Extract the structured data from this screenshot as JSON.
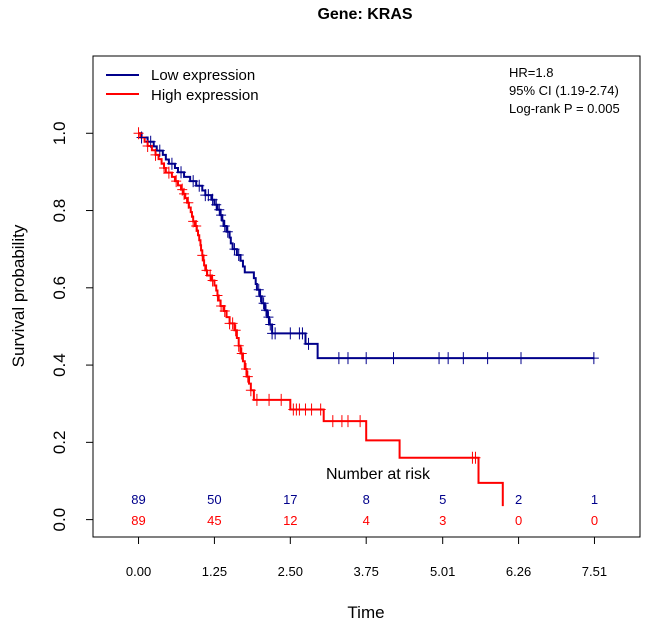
{
  "chart_data": {
    "type": "line",
    "title": "Gene: KRAS",
    "xlabel": "Time",
    "ylabel": "Survival probability",
    "xlim": [
      -0.75,
      8.26
    ],
    "ylim": [
      -0.045,
      1.2
    ],
    "x_ticks": [
      0.0,
      1.25,
      2.5,
      3.75,
      5.01,
      6.26,
      7.51
    ],
    "x_tick_labels": [
      "0.00",
      "1.25",
      "2.50",
      "3.75",
      "5.01",
      "6.26",
      "7.51"
    ],
    "y_ticks": [
      0.0,
      0.2,
      0.4,
      0.6,
      0.8,
      1.0
    ],
    "y_tick_labels": [
      "0.0",
      "0.2",
      "0.4",
      "0.6",
      "0.8",
      "1.0"
    ],
    "grid": false,
    "legend_position": "top-left",
    "stats": [
      "HR=1.8",
      "95% CI (1.19-2.74)",
      "Log-rank P = 0.005"
    ],
    "series": [
      {
        "name": "Low expression",
        "color": "#00008B",
        "steps": [
          [
            0.0,
            1.0
          ],
          [
            0.05,
            0.989
          ],
          [
            0.15,
            0.978
          ],
          [
            0.25,
            0.966
          ],
          [
            0.3,
            0.955
          ],
          [
            0.4,
            0.944
          ],
          [
            0.45,
            0.932
          ],
          [
            0.5,
            0.921
          ],
          [
            0.6,
            0.91
          ],
          [
            0.65,
            0.899
          ],
          [
            0.75,
            0.887
          ],
          [
            0.85,
            0.876
          ],
          [
            0.95,
            0.864
          ],
          [
            1.05,
            0.852
          ],
          [
            1.1,
            0.84
          ],
          [
            1.2,
            0.828
          ],
          [
            1.25,
            0.815
          ],
          [
            1.3,
            0.802
          ],
          [
            1.35,
            0.788
          ],
          [
            1.38,
            0.774
          ],
          [
            1.4,
            0.76
          ],
          [
            1.45,
            0.745
          ],
          [
            1.5,
            0.73
          ],
          [
            1.52,
            0.715
          ],
          [
            1.55,
            0.7
          ],
          [
            1.62,
            0.685
          ],
          [
            1.68,
            0.67
          ],
          [
            1.72,
            0.655
          ],
          [
            1.75,
            0.64
          ],
          [
            1.9,
            0.625
          ],
          [
            1.93,
            0.61
          ],
          [
            1.95,
            0.595
          ],
          [
            2.0,
            0.578
          ],
          [
            2.03,
            0.56
          ],
          [
            2.08,
            0.542
          ],
          [
            2.12,
            0.524
          ],
          [
            2.15,
            0.505
          ],
          [
            2.2,
            0.482
          ],
          [
            2.75,
            0.455
          ],
          [
            2.95,
            0.418
          ],
          [
            7.51,
            0.418
          ]
        ],
        "censor_x": [
          0.05,
          0.2,
          0.35,
          0.55,
          0.7,
          0.9,
          1.0,
          1.1,
          1.15,
          1.22,
          1.28,
          1.33,
          1.36,
          1.42,
          1.47,
          1.58,
          1.65,
          1.98,
          2.01,
          2.06,
          2.1,
          2.14,
          2.17,
          2.2,
          2.25,
          2.5,
          2.65,
          2.7,
          2.8,
          3.3,
          3.45,
          3.75,
          4.2,
          4.95,
          5.1,
          5.35,
          5.75,
          6.3,
          7.5
        ],
        "at_risk": [
          89,
          50,
          17,
          8,
          5,
          2,
          1
        ]
      },
      {
        "name": "High expression",
        "color": "#FF0000",
        "steps": [
          [
            0.0,
            1.0
          ],
          [
            0.03,
            0.989
          ],
          [
            0.1,
            0.978
          ],
          [
            0.15,
            0.967
          ],
          [
            0.22,
            0.956
          ],
          [
            0.28,
            0.944
          ],
          [
            0.33,
            0.933
          ],
          [
            0.38,
            0.921
          ],
          [
            0.42,
            0.91
          ],
          [
            0.45,
            0.898
          ],
          [
            0.55,
            0.887
          ],
          [
            0.6,
            0.876
          ],
          [
            0.65,
            0.865
          ],
          [
            0.7,
            0.854
          ],
          [
            0.74,
            0.843
          ],
          [
            0.77,
            0.832
          ],
          [
            0.8,
            0.82
          ],
          [
            0.83,
            0.808
          ],
          [
            0.86,
            0.796
          ],
          [
            0.88,
            0.784
          ],
          [
            0.9,
            0.772
          ],
          [
            0.93,
            0.76
          ],
          [
            0.96,
            0.748
          ],
          [
            0.98,
            0.736
          ],
          [
            1.0,
            0.723
          ],
          [
            1.02,
            0.71
          ],
          [
            1.03,
            0.697
          ],
          [
            1.05,
            0.684
          ],
          [
            1.07,
            0.671
          ],
          [
            1.08,
            0.658
          ],
          [
            1.1,
            0.645
          ],
          [
            1.13,
            0.632
          ],
          [
            1.2,
            0.619
          ],
          [
            1.25,
            0.606
          ],
          [
            1.28,
            0.593
          ],
          [
            1.3,
            0.58
          ],
          [
            1.32,
            0.567
          ],
          [
            1.35,
            0.553
          ],
          [
            1.4,
            0.54
          ],
          [
            1.45,
            0.524
          ],
          [
            1.5,
            0.508
          ],
          [
            1.58,
            0.49
          ],
          [
            1.62,
            0.47
          ],
          [
            1.65,
            0.45
          ],
          [
            1.68,
            0.43
          ],
          [
            1.72,
            0.41
          ],
          [
            1.75,
            0.39
          ],
          [
            1.78,
            0.37
          ],
          [
            1.82,
            0.352
          ],
          [
            1.85,
            0.335
          ],
          [
            1.9,
            0.31
          ],
          [
            2.5,
            0.285
          ],
          [
            3.05,
            0.255
          ],
          [
            3.75,
            0.205
          ],
          [
            4.3,
            0.16
          ],
          [
            5.6,
            0.095
          ],
          [
            6.0,
            0.035
          ]
        ],
        "censor_x": [
          0.0,
          0.15,
          0.28,
          0.42,
          0.5,
          0.62,
          0.72,
          0.75,
          0.82,
          0.9,
          0.95,
          1.05,
          1.12,
          1.18,
          1.22,
          1.3,
          1.36,
          1.42,
          1.5,
          1.55,
          1.6,
          1.65,
          1.7,
          1.77,
          1.8,
          1.85,
          1.95,
          2.15,
          2.35,
          2.55,
          2.6,
          2.65,
          2.75,
          2.85,
          3.0,
          3.2,
          3.35,
          3.45,
          3.65,
          5.5,
          5.55
        ],
        "at_risk": [
          89,
          45,
          12,
          4,
          3,
          0,
          0
        ]
      }
    ],
    "risk_table": {
      "title": "Number at risk"
    }
  }
}
